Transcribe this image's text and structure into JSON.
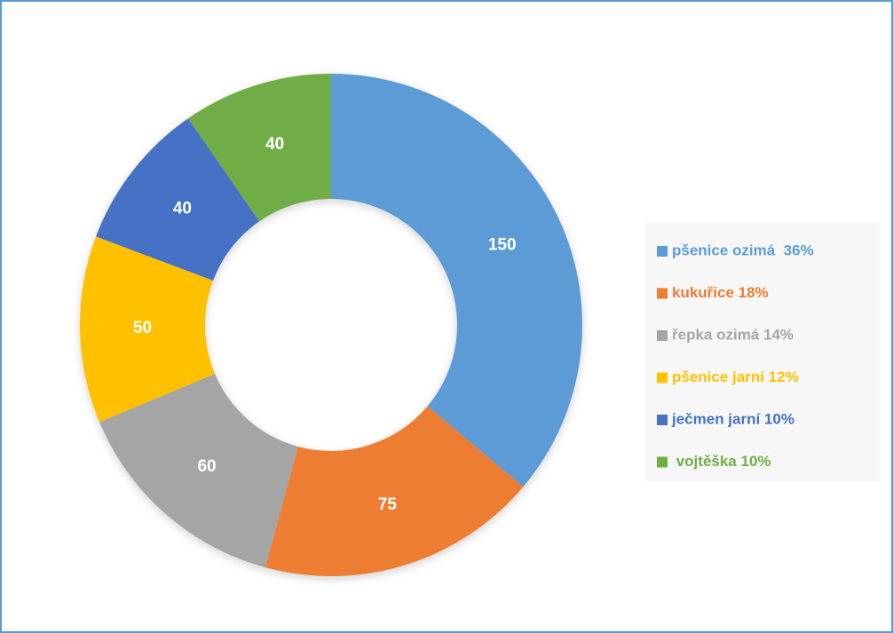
{
  "chart_data": {
    "type": "doughnut",
    "categories": [
      "pšenice ozimá  36%",
      "kukuřice 18%",
      "řepka ozimá 14%",
      "pšenice jarní 12%",
      "ječmen jarní 10%",
      " vojtěška 10%"
    ],
    "values": [
      150,
      75,
      60,
      50,
      40,
      40
    ],
    "colors": [
      "#5b9bd5",
      "#ed7d31",
      "#a5a5a5",
      "#ffc000",
      "#4472c4",
      "#70ad47"
    ],
    "legend": "right"
  }
}
